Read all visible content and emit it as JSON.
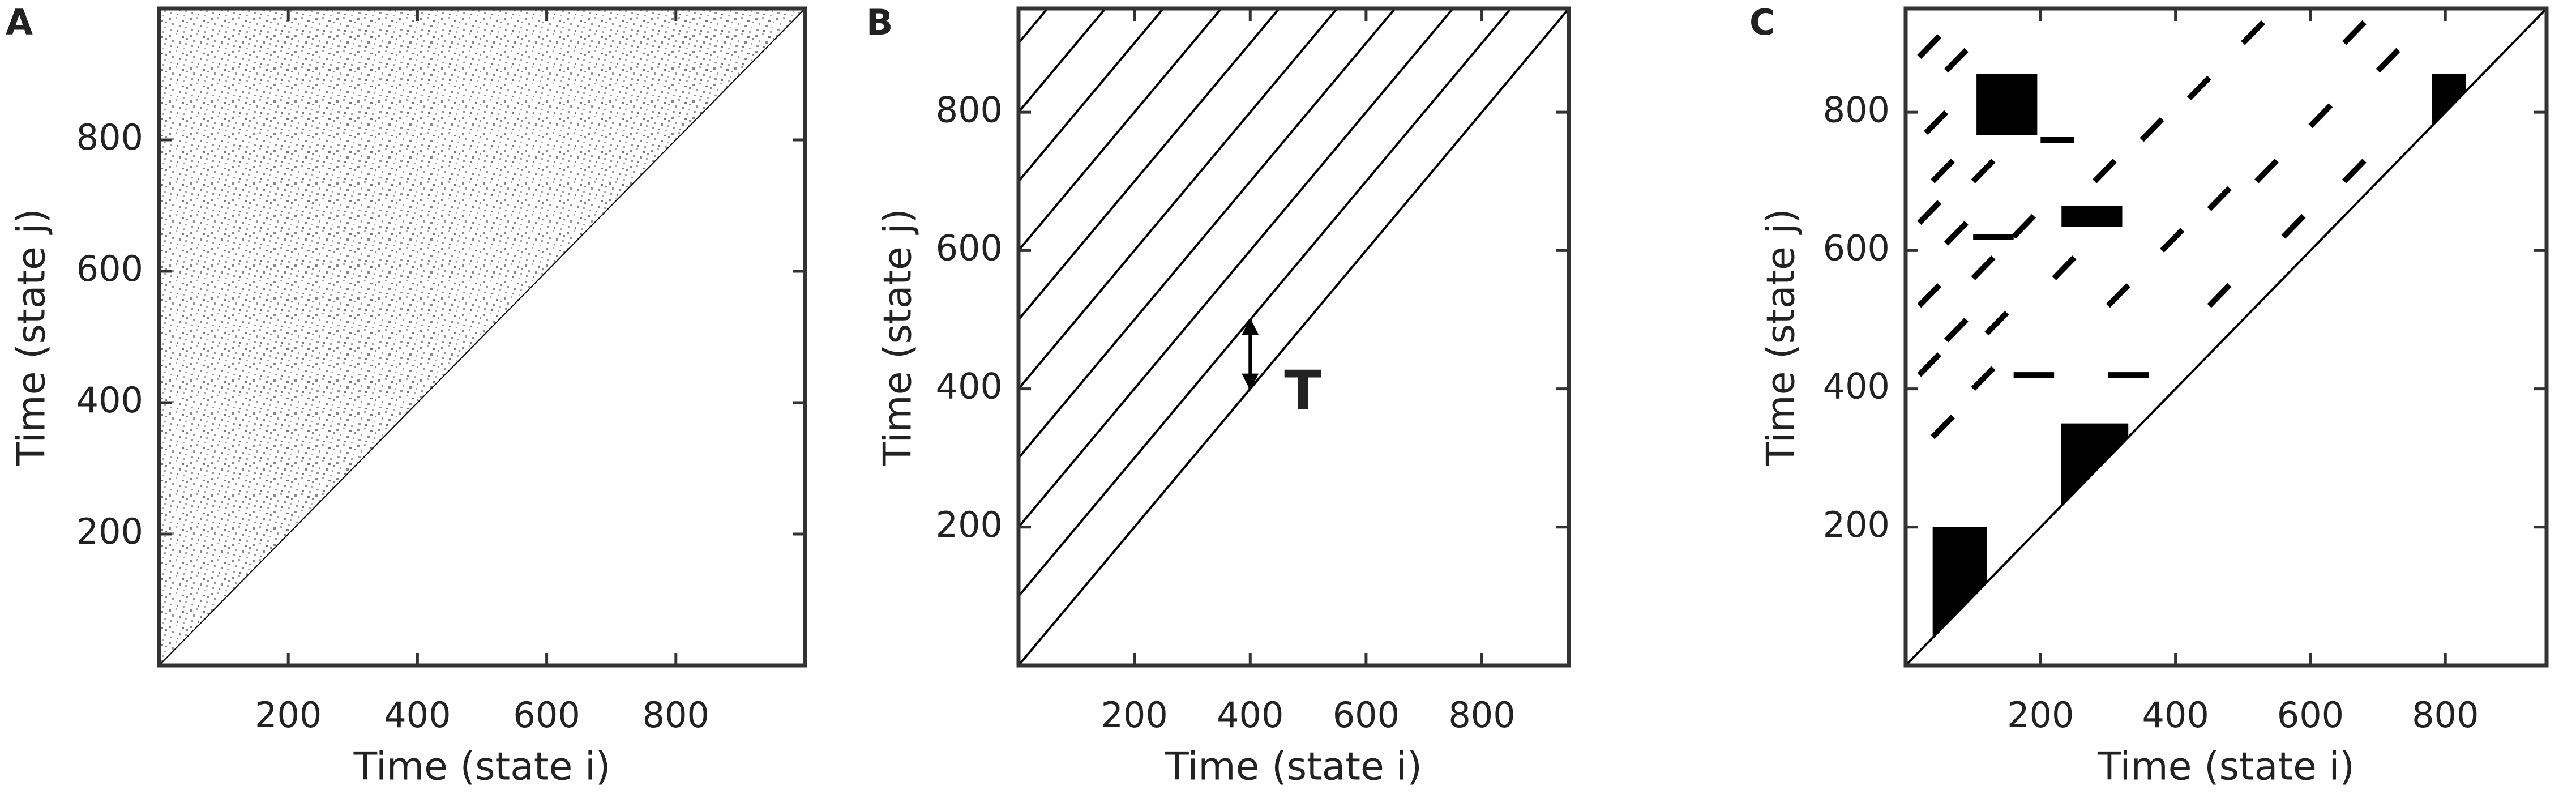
{
  "chart_data": [
    {
      "type": "recurrence",
      "panel": "A",
      "xlabel": "Time (state i)",
      "ylabel": "Time (state j)",
      "xlim": [
        0,
        1000
      ],
      "ylim": [
        0,
        1000
      ],
      "xticks": [
        200,
        400,
        600,
        800
      ],
      "yticks": [
        200,
        400,
        600,
        800
      ],
      "noise": true,
      "diagonals": [
        0
      ],
      "color": "#000000"
    },
    {
      "type": "recurrence",
      "panel": "B",
      "xlabel": "Time (state i)",
      "ylabel": "Time (state j)",
      "xlim": [
        0,
        950
      ],
      "ylim": [
        0,
        950
      ],
      "xticks": [
        200,
        400,
        600,
        800
      ],
      "yticks": [
        200,
        400,
        600,
        800
      ],
      "diagonals": [
        0,
        100,
        200,
        300,
        400,
        500,
        600,
        700,
        800,
        900
      ],
      "color": "#000000",
      "annotation": {
        "text": "T",
        "x": 400,
        "y": [
          400,
          500
        ]
      }
    },
    {
      "type": "recurrence",
      "panel": "C",
      "xlabel": "Time (state i)",
      "ylabel": "Time (state j)",
      "xlim": [
        0,
        950
      ],
      "ylim": [
        0,
        950
      ],
      "xticks": [
        200,
        400,
        600,
        800
      ],
      "yticks": [
        200,
        400,
        600,
        800
      ],
      "diagonals": [
        0
      ],
      "color": "#000000",
      "blocks": [
        [
          105,
          195,
          767,
          855
        ],
        [
          231,
          321,
          634,
          665
        ]
      ],
      "wedges": [
        [
          40,
          120,
          200
        ],
        [
          230,
          330,
          350
        ],
        [
          780,
          830,
          855
        ]
      ],
      "segments": [
        [
          20,
          880,
          50,
          910
        ],
        [
          60,
          860,
          90,
          890
        ],
        [
          30,
          770,
          60,
          800
        ],
        [
          40,
          700,
          70,
          730
        ],
        [
          20,
          640,
          50,
          670
        ],
        [
          100,
          700,
          130,
          730
        ],
        [
          60,
          610,
          90,
          640
        ],
        [
          100,
          560,
          130,
          590
        ],
        [
          20,
          520,
          50,
          550
        ],
        [
          60,
          470,
          90,
          500
        ],
        [
          20,
          420,
          50,
          450
        ],
        [
          100,
          400,
          130,
          430
        ],
        [
          40,
          330,
          70,
          360
        ],
        [
          120,
          480,
          150,
          510
        ],
        [
          160,
          620,
          190,
          650
        ],
        [
          220,
          560,
          250,
          590
        ],
        [
          300,
          520,
          330,
          550
        ],
        [
          280,
          700,
          310,
          730
        ],
        [
          350,
          760,
          380,
          790
        ],
        [
          420,
          820,
          450,
          850
        ],
        [
          500,
          900,
          530,
          930
        ],
        [
          380,
          600,
          410,
          630
        ],
        [
          450,
          660,
          480,
          690
        ],
        [
          520,
          700,
          550,
          730
        ],
        [
          600,
          780,
          630,
          810
        ],
        [
          560,
          620,
          590,
          650
        ],
        [
          650,
          700,
          680,
          730
        ],
        [
          700,
          860,
          730,
          890
        ],
        [
          450,
          520,
          480,
          550
        ],
        [
          650,
          900,
          680,
          930
        ],
        [
          100,
          620,
          160,
          620
        ],
        [
          200,
          760,
          250,
          760
        ],
        [
          300,
          420,
          360,
          420
        ],
        [
          160,
          420,
          220,
          420
        ]
      ]
    }
  ]
}
